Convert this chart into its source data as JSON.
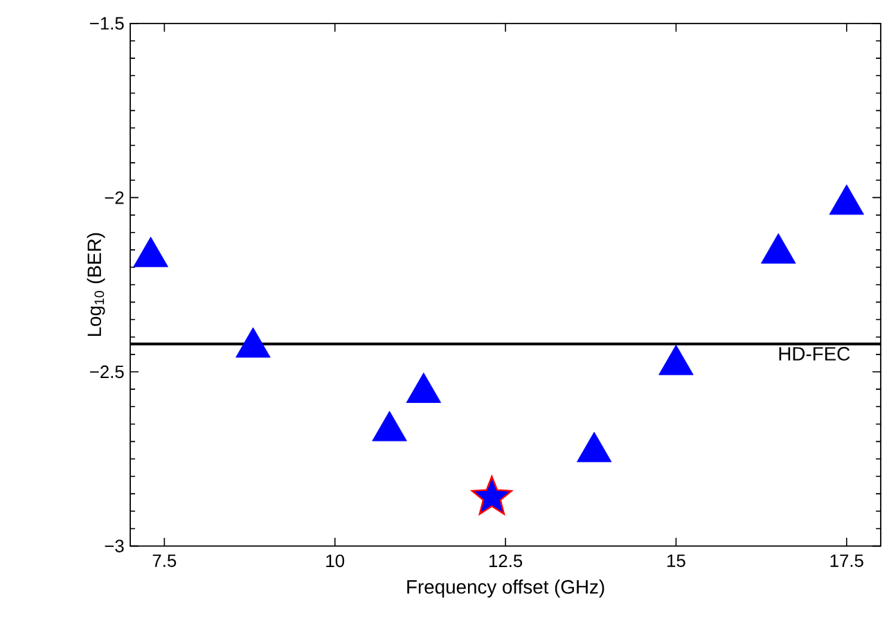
{
  "chart_data": {
    "type": "scatter",
    "xlabel": "Frequency offset (GHz)",
    "ylabel": "Log$_{10}$ (BER)",
    "xlim": [
      7,
      18
    ],
    "ylim": [
      -3,
      -1.5
    ],
    "xticks": [
      7.5,
      10,
      12.5,
      15,
      17.5
    ],
    "yticks": [
      {
        "value": -3,
        "label": "−3"
      },
      {
        "value": -2.5,
        "label": "−2.5"
      },
      {
        "value": -2,
        "label": "−2"
      },
      {
        "value": -1.5,
        "label": "−1.5"
      }
    ],
    "grid": false,
    "series": [
      {
        "color": "#0000ff",
        "marker": "triangle",
        "x": [
          7.3,
          8.8,
          10.8,
          11.3,
          13.8,
          15,
          16.5,
          17.5
        ],
        "values": [
          -2.17,
          -2.43,
          -2.67,
          -2.56,
          -2.73,
          -2.48,
          -2.16,
          -2.02
        ]
      },
      {
        "color": "#0000ff",
        "marker": "star",
        "x": [
          12.3
        ],
        "values": [
          -2.86
        ]
      }
    ],
    "ref_lines": [
      {
        "axis": "y",
        "value": -2.42,
        "label": "HD-FEC",
        "color": "#000000"
      }
    ]
  }
}
